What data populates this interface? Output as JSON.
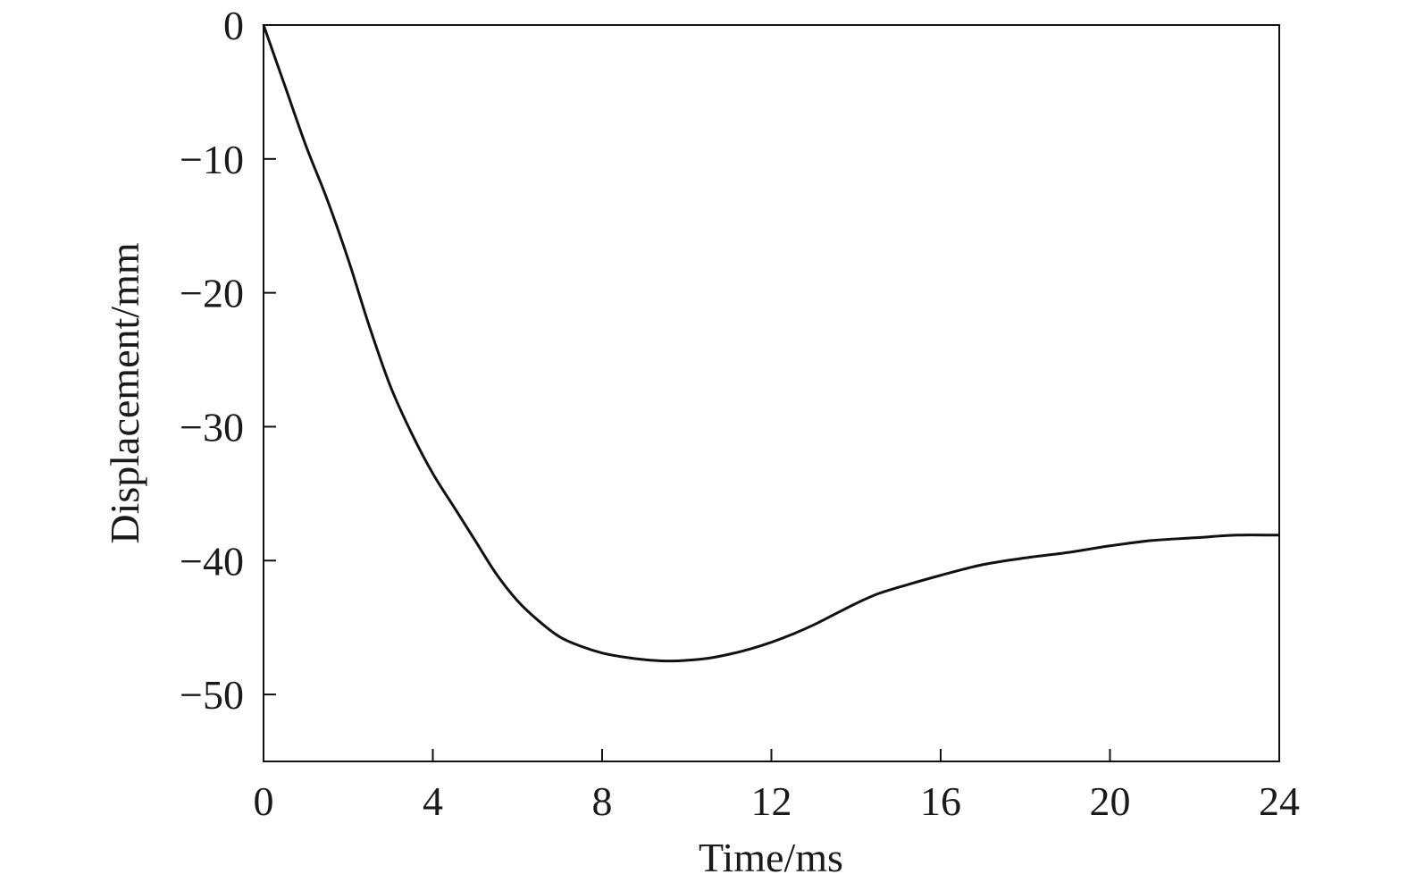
{
  "chart_data": {
    "type": "line",
    "title": "",
    "xlabel": "Time/ms",
    "ylabel": "Displacement/mm",
    "xlim": [
      0,
      24
    ],
    "ylim": [
      -55,
      0
    ],
    "xticks": [
      0,
      4,
      8,
      12,
      16,
      20,
      24
    ],
    "yticks": [
      0,
      -10,
      -20,
      -30,
      -40,
      -50
    ],
    "xtick_labels": [
      "0",
      "4",
      "8",
      "12",
      "16",
      "20",
      "24"
    ],
    "ytick_labels": [
      "0",
      "−10",
      "−20",
      "−30",
      "−40",
      "−50"
    ],
    "grid": false,
    "legend": "none",
    "line_color": "#111111",
    "series": [
      {
        "x": [
          0,
          0.5,
          1,
          1.5,
          2,
          2.5,
          3,
          3.5,
          4,
          4.5,
          5,
          5.5,
          6,
          6.5,
          7,
          7.5,
          8,
          8.5,
          9,
          9.5,
          10,
          10.5,
          11,
          11.5,
          12,
          12.5,
          13,
          13.5,
          14,
          14.5,
          15,
          16,
          17,
          18,
          19,
          20,
          21,
          22,
          23,
          24
        ],
        "y": [
          0,
          -4.5,
          -9.0,
          -13.0,
          -17.5,
          -22.5,
          -27.0,
          -30.5,
          -33.5,
          -36.0,
          -38.5,
          -41.0,
          -43.0,
          -44.5,
          -45.7,
          -46.4,
          -46.9,
          -47.2,
          -47.4,
          -47.5,
          -47.45,
          -47.3,
          -47.0,
          -46.6,
          -46.1,
          -45.5,
          -44.8,
          -44.0,
          -43.2,
          -42.5,
          -42.0,
          -41.1,
          -40.3,
          -39.8,
          -39.4,
          -38.9,
          -38.5,
          -38.3,
          -38.1,
          -38.1
        ]
      }
    ]
  }
}
